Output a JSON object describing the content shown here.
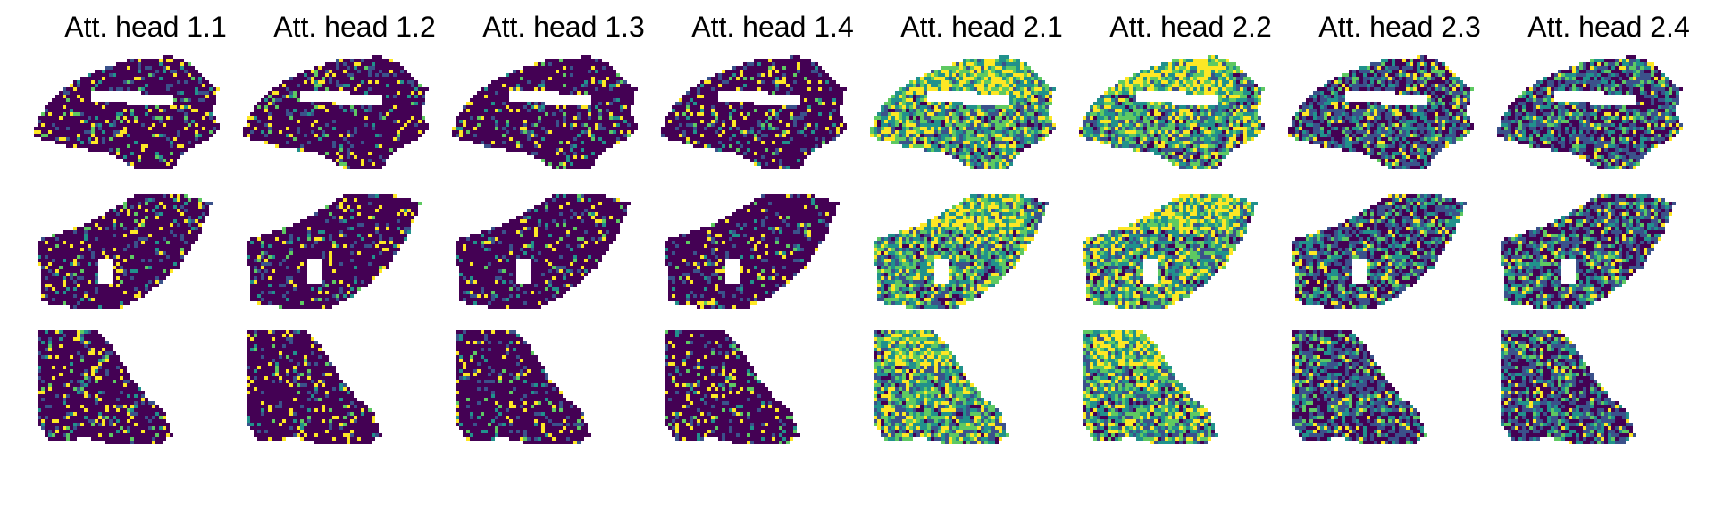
{
  "figure": {
    "column_titles": [
      "Att. head 1.1",
      "Att. head 1.2",
      "Att. head 1.3",
      "Att. head 1.4",
      "Att. head 2.1",
      "Att. head 2.2",
      "Att. head 2.3",
      "Att. head 2.4"
    ],
    "row_count": 3,
    "colormap": "viridis",
    "colors": {
      "low": "#440154",
      "mid_low": "#3b528b",
      "mid": "#21918c",
      "mid_high": "#5ec962",
      "high": "#fde725",
      "background": "#ffffff"
    },
    "panel_shapes": [
      "brain-sagittal-section",
      "tissue-wedge-section",
      "tissue-irregular-section"
    ],
    "heads": [
      {
        "title_index": 0,
        "intensity": "sparse"
      },
      {
        "title_index": 1,
        "intensity": "sparse"
      },
      {
        "title_index": 2,
        "intensity": "sparse"
      },
      {
        "title_index": 3,
        "intensity": "sparse"
      },
      {
        "title_index": 4,
        "intensity": "dense"
      },
      {
        "title_index": 5,
        "intensity": "dense"
      },
      {
        "title_index": 6,
        "intensity": "medium"
      },
      {
        "title_index": 7,
        "intensity": "medium"
      }
    ]
  }
}
